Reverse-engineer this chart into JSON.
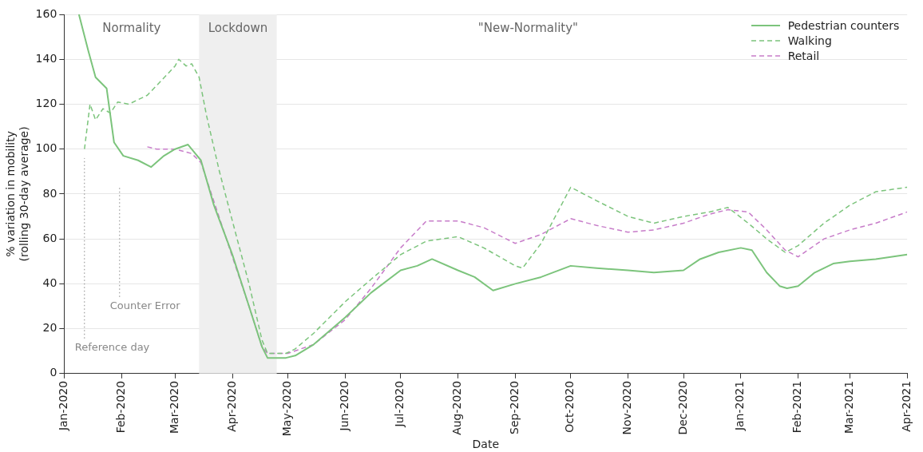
{
  "chart_data": {
    "type": "line",
    "xlabel": "Date",
    "ylabel": "% variation in mobility\n(rolling 30-day average)",
    "xlim": [
      "2020-01-01",
      "2021-04-01"
    ],
    "xticks": [
      {
        "value": "2020-01-01",
        "label": "Jan-2020"
      },
      {
        "value": "2020-02-01",
        "label": "Feb-2020"
      },
      {
        "value": "2020-03-01",
        "label": "Mar-2020"
      },
      {
        "value": "2020-04-01",
        "label": "Apr-2020"
      },
      {
        "value": "2020-05-01",
        "label": "May-2020"
      },
      {
        "value": "2020-06-01",
        "label": "Jun-2020"
      },
      {
        "value": "2020-07-01",
        "label": "Jul-2020"
      },
      {
        "value": "2020-08-01",
        "label": "Aug-2020"
      },
      {
        "value": "2020-09-01",
        "label": "Sep-2020"
      },
      {
        "value": "2020-10-01",
        "label": "Oct-2020"
      },
      {
        "value": "2020-11-01",
        "label": "Nov-2020"
      },
      {
        "value": "2020-12-01",
        "label": "Dec-2020"
      },
      {
        "value": "2021-01-01",
        "label": "Jan-2021"
      },
      {
        "value": "2021-02-01",
        "label": "Feb-2021"
      },
      {
        "value": "2021-03-01",
        "label": "Mar-2021"
      },
      {
        "value": "2021-04-01",
        "label": "Apr-2021"
      }
    ],
    "ylim": [
      0,
      160
    ],
    "yticks": [
      0,
      20,
      40,
      60,
      80,
      100,
      120,
      140,
      160
    ],
    "grid": "y",
    "legend": "top right",
    "marker": "none",
    "series": [
      {
        "name": "Pedestrian counters",
        "color": "#7cc47c",
        "line_style": "solid",
        "x": [
          "2020-01-09",
          "2020-01-14",
          "2020-01-18",
          "2020-01-24",
          "2020-01-28",
          "2020-02-02",
          "2020-02-10",
          "2020-02-17",
          "2020-02-24",
          "2020-03-01",
          "2020-03-08",
          "2020-03-12",
          "2020-03-15",
          "2020-03-22",
          "2020-04-01",
          "2020-04-10",
          "2020-04-17",
          "2020-04-20",
          "2020-04-30",
          "2020-05-05",
          "2020-05-15",
          "2020-06-01",
          "2020-06-15",
          "2020-07-01",
          "2020-07-10",
          "2020-07-18",
          "2020-08-01",
          "2020-08-10",
          "2020-08-20",
          "2020-09-01",
          "2020-09-15",
          "2020-10-01",
          "2020-10-15",
          "2020-11-01",
          "2020-11-15",
          "2020-12-01",
          "2020-12-10",
          "2020-12-20",
          "2021-01-01",
          "2021-01-07",
          "2021-01-15",
          "2021-01-22",
          "2021-01-26",
          "2021-02-01",
          "2021-02-10",
          "2021-02-20",
          "2021-03-01",
          "2021-03-15",
          "2021-04-01"
        ],
        "values": [
          160,
          144,
          132,
          127,
          103,
          97,
          95,
          92,
          97,
          100,
          102,
          98,
          95,
          75,
          53,
          30,
          12,
          7,
          7,
          8,
          13,
          25,
          36,
          46,
          48,
          51,
          46,
          43,
          37,
          40,
          43,
          48,
          47,
          46,
          45,
          46,
          51,
          54,
          56,
          55,
          45,
          39,
          38,
          39,
          45,
          49,
          50,
          51,
          53
        ]
      },
      {
        "name": "Walking",
        "color": "#7cc47c",
        "line_style": "dashed",
        "x": [
          "2020-01-12",
          "2020-01-15",
          "2020-01-18",
          "2020-01-22",
          "2020-01-26",
          "2020-01-30",
          "2020-02-05",
          "2020-02-15",
          "2020-02-22",
          "2020-03-01",
          "2020-03-03",
          "2020-03-07",
          "2020-03-10",
          "2020-03-14",
          "2020-03-18",
          "2020-03-25",
          "2020-04-01",
          "2020-04-10",
          "2020-04-17",
          "2020-04-20",
          "2020-04-30",
          "2020-05-05",
          "2020-05-15",
          "2020-06-01",
          "2020-06-15",
          "2020-07-01",
          "2020-07-15",
          "2020-08-01",
          "2020-08-15",
          "2020-09-01",
          "2020-09-05",
          "2020-09-15",
          "2020-10-01",
          "2020-10-15",
          "2020-11-01",
          "2020-11-15",
          "2020-12-01",
          "2020-12-15",
          "2020-12-25",
          "2021-01-05",
          "2021-01-15",
          "2021-01-25",
          "2021-02-01",
          "2021-02-15",
          "2021-03-01",
          "2021-03-15",
          "2021-04-01"
        ],
        "values": [
          100,
          120,
          113,
          118,
          116,
          121,
          120,
          124,
          130,
          137,
          140,
          137,
          138,
          132,
          115,
          90,
          68,
          40,
          15,
          9,
          9,
          11,
          18,
          32,
          42,
          53,
          59,
          61,
          56,
          48,
          47,
          58,
          83,
          77,
          70,
          67,
          70,
          72,
          74,
          67,
          60,
          54,
          57,
          67,
          75,
          81,
          83
        ]
      },
      {
        "name": "Retail",
        "color": "#c77cc9",
        "line_style": "dashed",
        "x": [
          "2020-02-15",
          "2020-02-20",
          "2020-03-01",
          "2020-03-10",
          "2020-03-15",
          "2020-04-01",
          "2020-04-10",
          "2020-04-17",
          "2020-04-20",
          "2020-05-01",
          "2020-05-15",
          "2020-06-01",
          "2020-06-15",
          "2020-07-01",
          "2020-07-15",
          "2020-08-01",
          "2020-08-15",
          "2020-09-01",
          "2020-09-15",
          "2020-10-01",
          "2020-10-15",
          "2020-11-01",
          "2020-11-15",
          "2020-12-01",
          "2020-12-15",
          "2020-12-25",
          "2021-01-05",
          "2021-01-15",
          "2021-01-25",
          "2021-02-01",
          "2021-02-15",
          "2021-03-01",
          "2021-03-15",
          "2021-04-01"
        ],
        "values": [
          101,
          100,
          100,
          98,
          94,
          52,
          30,
          12,
          9,
          9,
          13,
          24,
          38,
          56,
          68,
          68,
          65,
          58,
          62,
          69,
          66,
          63,
          64,
          67,
          71,
          73,
          72,
          64,
          55,
          52,
          60,
          64,
          67,
          72
        ]
      }
    ],
    "bands": [
      {
        "axis": "x",
        "from": "2020-03-14",
        "to": "2020-04-25",
        "label": "Lockdown",
        "color": "#efefef"
      }
    ],
    "annotations": [
      "Normality",
      "\"New-Normality\""
    ],
    "ref_lines": [
      {
        "axis": "x",
        "value": "2020-01-12",
        "label": "Reference day",
        "line_style": "dotted",
        "color": "#888888"
      },
      {
        "axis": "x",
        "value": "2020-01-31",
        "label": "Counter Error",
        "line_style": "dotted",
        "color": "#888888"
      }
    ]
  }
}
